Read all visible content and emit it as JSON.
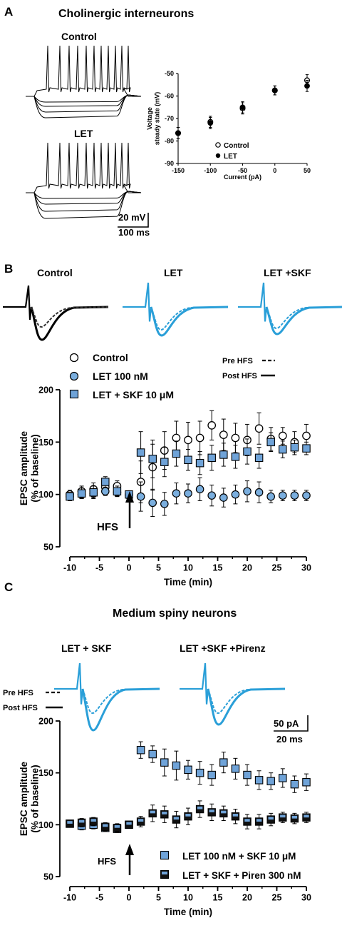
{
  "colors": {
    "trace_blue": "#2a9fd8",
    "square_fill": "#6fa3d8",
    "circle_fill": "#7aaede",
    "black": "#000000"
  },
  "panel_a": {
    "letter": "A",
    "title": "Cholinergic interneurons",
    "trace_labels": [
      "Control",
      "LET"
    ],
    "scale_v": "20 mV",
    "scale_t": "100 ms"
  },
  "panel_b": {
    "letter": "B",
    "trace_labels": [
      "Control",
      "LET",
      "LET +SKF"
    ],
    "line_legend": [
      "Pre HFS",
      "Post HFS"
    ],
    "arrow_label": "HFS"
  },
  "panel_c": {
    "letter": "C",
    "title": "Medium spiny neurons",
    "trace_labels": [
      "LET + SKF",
      "LET +SKF +Pirenz"
    ],
    "line_legend": [
      "Pre HFS",
      "Post HFS"
    ],
    "scale_i": "50 pA",
    "scale_t": "20 ms",
    "arrow_label": "HFS"
  },
  "chart_data": [
    {
      "type": "scatter",
      "xlabel": "Current (pA)",
      "ylabel": "Voltage steady state (mV)",
      "ylabel_lines": [
        "Voltage",
        "steady state (mV)"
      ],
      "xlim": [
        -150,
        50
      ],
      "ylim": [
        -90,
        -50
      ],
      "xticks": [
        -150,
        -100,
        -50,
        0,
        50
      ],
      "yticks": [
        -90,
        -80,
        -70,
        -60,
        -50
      ],
      "series": [
        {
          "name": "Control",
          "marker": "open-circle",
          "x": [
            -150,
            -100,
            -50,
            0,
            50
          ],
          "y": [
            -76.5,
            -71.5,
            -65.5,
            -57.5,
            -53.0
          ],
          "err": [
            2.5,
            2.5,
            2.5,
            2.0,
            2.5
          ]
        },
        {
          "name": "LET",
          "marker": "filled-circle",
          "x": [
            -150,
            -100,
            -50,
            0,
            50
          ],
          "y": [
            -76.5,
            -72.0,
            -65.0,
            -57.5,
            -55.5
          ],
          "err": [
            2.5,
            2.5,
            2.5,
            2.0,
            2.5
          ]
        }
      ]
    },
    {
      "type": "scatter",
      "xlabel": "Time (min)",
      "ylabel": "EPSC amplitude (% of baseline)",
      "ylabel_lines": [
        "EPSC amplitude",
        "(% of baseline)"
      ],
      "xlim": [
        -10,
        30
      ],
      "ylim": [
        50,
        200
      ],
      "xticks": [
        -10,
        -5,
        0,
        5,
        10,
        15,
        20,
        25,
        30
      ],
      "yticks": [
        50,
        100,
        150,
        200
      ],
      "series": [
        {
          "name": "Control",
          "marker": "open-circle",
          "x": [
            -10,
            -8,
            -6,
            -4,
            -2,
            0,
            2,
            4,
            6,
            8,
            10,
            12,
            14,
            16,
            18,
            20,
            22,
            24,
            26,
            28,
            30
          ],
          "y": [
            100,
            103,
            105,
            107,
            108,
            100,
            112,
            126,
            142,
            154,
            152,
            154,
            166,
            157,
            154,
            152,
            163,
            153,
            156,
            150,
            156
          ],
          "err": [
            4,
            5,
            6,
            6,
            5,
            3,
            20,
            22,
            18,
            16,
            17,
            16,
            14,
            15,
            14,
            15,
            15,
            11,
            8,
            10,
            11
          ]
        },
        {
          "name": "LET 100 nM",
          "marker": "filled-circle",
          "x": [
            -10,
            -8,
            -6,
            -4,
            -2,
            0,
            2,
            4,
            6,
            8,
            10,
            12,
            14,
            16,
            18,
            20,
            22,
            24,
            26,
            28,
            30
          ],
          "y": [
            98,
            100,
            101,
            103,
            102,
            99,
            98,
            92,
            91,
            101,
            101,
            105,
            99,
            97,
            100,
            103,
            102,
            98,
            99,
            99,
            99
          ],
          "err": [
            3,
            4,
            4,
            4,
            4,
            3,
            14,
            13,
            11,
            10,
            9,
            11,
            10,
            9,
            9,
            10,
            10,
            6,
            5,
            5,
            5
          ]
        },
        {
          "name": "LET + SKF 10 μM",
          "marker": "filled-square",
          "x": [
            -10,
            -8,
            -6,
            -4,
            -2,
            0,
            2,
            4,
            6,
            8,
            10,
            12,
            14,
            16,
            18,
            20,
            22,
            24,
            26,
            28,
            30
          ],
          "y": [
            98,
            101,
            102,
            112,
            103,
            100,
            140,
            134,
            131,
            139,
            133,
            130,
            135,
            138,
            136,
            141,
            135,
            150,
            143,
            145,
            144
          ],
          "err": [
            4,
            5,
            6,
            5,
            5,
            3,
            20,
            18,
            14,
            12,
            10,
            11,
            12,
            11,
            11,
            12,
            10,
            9,
            8,
            7,
            6
          ]
        }
      ]
    },
    {
      "type": "scatter",
      "xlabel": "Time (min)",
      "ylabel": "EPSC amplitude (% of baseline)",
      "ylabel_lines": [
        "EPSC amplitude",
        "(% of baseline)"
      ],
      "xlim": [
        -10,
        30
      ],
      "ylim": [
        50,
        200
      ],
      "xticks": [
        -10,
        -5,
        0,
        5,
        10,
        15,
        20,
        25,
        30
      ],
      "yticks": [
        50,
        100,
        150,
        200
      ],
      "series": [
        {
          "name": "LET 100 nM + SKF 10 μM",
          "marker": "filled-square",
          "x": [
            -10,
            -8,
            -6,
            -4,
            -2,
            0,
            2,
            4,
            6,
            8,
            10,
            12,
            14,
            16,
            18,
            20,
            22,
            24,
            26,
            28,
            30
          ],
          "y": [
            101,
            99,
            100,
            97,
            96,
            100,
            172,
            168,
            160,
            157,
            153,
            150,
            148,
            160,
            154,
            148,
            143,
            142,
            145,
            139,
            141
          ],
          "err": [
            3,
            4,
            4,
            3,
            3,
            2,
            8,
            8,
            13,
            14,
            9,
            11,
            10,
            10,
            10,
            10,
            9,
            8,
            9,
            8,
            8
          ]
        },
        {
          "name": "LET + SKF + Piren 300 nM",
          "marker": "filled-square-dark",
          "x": [
            -10,
            -8,
            -6,
            -4,
            -2,
            0,
            2,
            4,
            6,
            8,
            10,
            12,
            14,
            16,
            18,
            20,
            22,
            24,
            26,
            28,
            30
          ],
          "y": [
            101,
            102,
            103,
            98,
            97,
            100,
            103,
            111,
            110,
            105,
            108,
            115,
            112,
            111,
            108,
            103,
            103,
            105,
            107,
            106,
            107
          ],
          "err": [
            3,
            4,
            4,
            4,
            4,
            3,
            5,
            8,
            8,
            8,
            8,
            8,
            8,
            7,
            7,
            7,
            7,
            6,
            5,
            5,
            5
          ]
        }
      ]
    }
  ]
}
